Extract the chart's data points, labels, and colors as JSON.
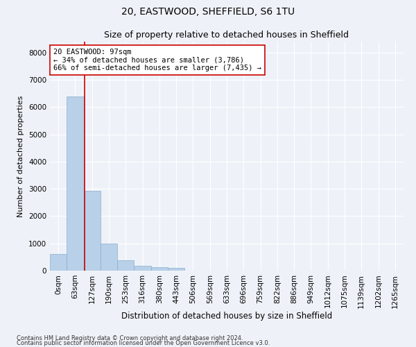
{
  "title1": "20, EASTWOOD, SHEFFIELD, S6 1TU",
  "title2": "Size of property relative to detached houses in Sheffield",
  "xlabel": "Distribution of detached houses by size in Sheffield",
  "ylabel": "Number of detached properties",
  "bar_labels": [
    "0sqm",
    "63sqm",
    "127sqm",
    "190sqm",
    "253sqm",
    "316sqm",
    "380sqm",
    "443sqm",
    "506sqm",
    "569sqm",
    "633sqm",
    "696sqm",
    "759sqm",
    "822sqm",
    "886sqm",
    "949sqm",
    "1012sqm",
    "1075sqm",
    "1139sqm",
    "1202sqm",
    "1265sqm"
  ],
  "bar_values": [
    620,
    6400,
    2920,
    1000,
    380,
    175,
    125,
    100,
    0,
    0,
    0,
    0,
    0,
    0,
    0,
    0,
    0,
    0,
    0,
    0,
    0
  ],
  "bar_color": "#b8d0e8",
  "bar_edge_color": "#8aafd0",
  "vline_x": 1.54,
  "vline_color": "#cc0000",
  "annotation_text": "20 EASTWOOD: 97sqm\n← 34% of detached houses are smaller (3,786)\n66% of semi-detached houses are larger (7,435) →",
  "annotation_box_color": "#ffffff",
  "annotation_border_color": "#cc0000",
  "ylim": [
    0,
    8400
  ],
  "yticks": [
    0,
    1000,
    2000,
    3000,
    4000,
    5000,
    6000,
    7000,
    8000
  ],
  "footer1": "Contains HM Land Registry data © Crown copyright and database right 2024.",
  "footer2": "Contains public sector information licensed under the Open Government Licence v3.0.",
  "background_color": "#eef2f8",
  "grid_color": "#ffffff",
  "title1_fontsize": 10,
  "title2_fontsize": 9,
  "annotation_fontsize": 7.5,
  "ylabel_fontsize": 8,
  "xlabel_fontsize": 8.5,
  "tick_fontsize": 7.5,
  "footer_fontsize": 6
}
